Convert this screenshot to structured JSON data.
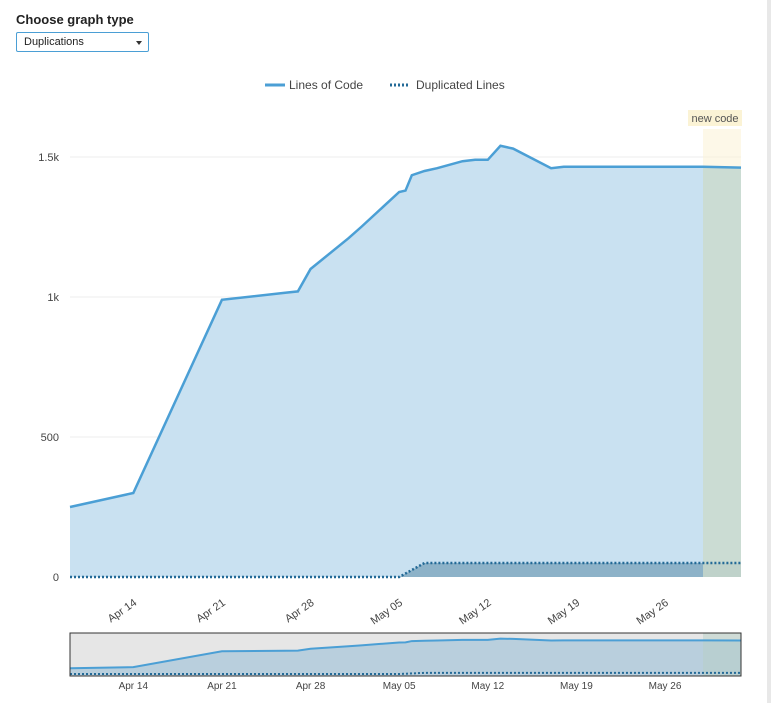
{
  "header": {
    "title": "Choose graph type",
    "graph_type_selected": "Duplications"
  },
  "legend": {
    "items": [
      {
        "label": "Lines of Code",
        "style": "solid"
      },
      {
        "label": "Duplicated Lines",
        "style": "dotted"
      }
    ]
  },
  "annotation": {
    "new_code_label": "new code"
  },
  "colors": {
    "lines_of_code": "#4b9fd5",
    "area_fill": "#c9e1f1",
    "duplicated_lines": "#236a97",
    "duplicated_area": "#8db2c8",
    "new_code_band": "#fbf3d5",
    "brush_bg": "#e6e6e6"
  },
  "chart_data": {
    "type": "area",
    "title": "",
    "xlabel": "",
    "ylabel": "",
    "x_ticks": [
      "Apr 14",
      "Apr 21",
      "Apr 28",
      "May 05",
      "May 12",
      "May 19",
      "May 26"
    ],
    "y_ticks": [
      "0",
      "500",
      "1k",
      "1.5k"
    ],
    "ylim": [
      0,
      1500
    ],
    "grid": true,
    "legend_position": "top",
    "series": [
      {
        "name": "Lines of Code",
        "x": [
          "Apr 09",
          "Apr 14",
          "Apr 21",
          "Apr 26",
          "Apr 27",
          "Apr 28",
          "May 01",
          "May 02",
          "May 05",
          "May 05 12:00",
          "May 06",
          "May 07",
          "May 08",
          "May 10",
          "May 11",
          "May 12",
          "May 13",
          "May 14",
          "May 17",
          "May 18",
          "May 20",
          "May 22",
          "May 26",
          "May 29",
          "Jun 01"
        ],
        "values": [
          250,
          300,
          990,
          1015,
          1020,
          1100,
          1210,
          1250,
          1375,
          1380,
          1435,
          1450,
          1460,
          1485,
          1490,
          1490,
          1540,
          1530,
          1460,
          1465,
          1465,
          1465,
          1465,
          1465,
          1462
        ]
      },
      {
        "name": "Duplicated Lines",
        "x": [
          "Apr 09",
          "May 02",
          "May 05",
          "May 07",
          "Jun 01"
        ],
        "values": [
          0,
          0,
          0,
          50,
          50
        ]
      }
    ],
    "new_code_start": "May 29"
  }
}
